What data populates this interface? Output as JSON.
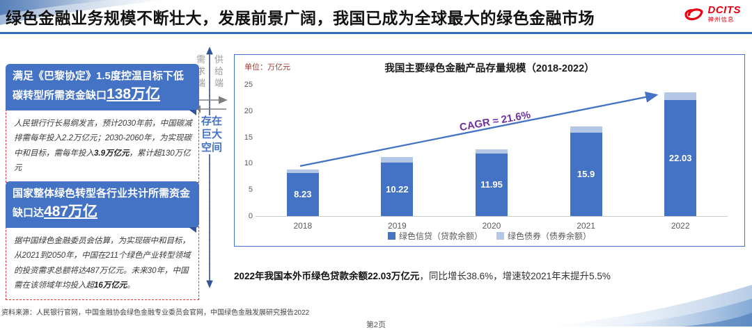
{
  "slide": {
    "title": "绿色金融业务规模不断壮大，发展前景广阔，我国已成为全球最大的绿色金融市场",
    "source": "资料来源：人民银行官网，中国金融协会绿色金融专业委员会官网，中国绿色金融发展研究报告2022",
    "page_label": "第2页"
  },
  "logo": {
    "name": "DCITS",
    "subtitle": "神州信息",
    "color": "#e60012"
  },
  "left_panel": {
    "box1": {
      "header_segments": [
        {
          "t": "满足《巴黎协定》1.5度控温目标下低碳转型所需资金缺口"
        },
        {
          "t": "138万亿",
          "cls": "hl"
        }
      ],
      "body_segments": [
        {
          "t": "人民银行行长易纲发言，预计2030年前，中国碳减排需每年投入2.2万亿元；2030-2060年，为实现碳中和目标，需每年投入"
        },
        {
          "t": "3.9万亿元",
          "cls": "b"
        },
        {
          "t": "，累计超130万亿元"
        }
      ]
    },
    "box2": {
      "header_segments": [
        {
          "t": "国家整体绿色转型各行业共计所需资金缺口达"
        },
        {
          "t": "487万亿",
          "cls": "hl"
        }
      ],
      "body_segments": [
        {
          "t": "据中国绿色金融委员会估算，为实现碳中和目标，从2021到2050年，中国在211个绿色产业转型领域的投资需求总额将达487万亿元。未来30年，中国需在该领域年均投入超"
        },
        {
          "t": "16万亿元",
          "cls": "b"
        },
        {
          "t": "。"
        }
      ]
    }
  },
  "divider": {
    "demand_label": "需求端",
    "supply_label": "供给端",
    "gap_label": "存在巨大空间"
  },
  "chart": {
    "unit_label": "单位：万亿元"
  },
  "chart_data": {
    "type": "bar",
    "stacked": true,
    "title": "我国主要绿色金融产品存量规模（2018-2022）",
    "unit": "万亿元",
    "categories": [
      "2018",
      "2019",
      "2020",
      "2021",
      "2022"
    ],
    "series": [
      {
        "name": "绿色信贷（贷款余额）",
        "color": "#4472c4",
        "values": [
          8.23,
          10.22,
          11.95,
          15.9,
          22.03
        ],
        "labeled": true
      },
      {
        "name": "绿色债券（债券余额）",
        "color": "#b4c7e7",
        "values": [
          0.7,
          1.0,
          0.8,
          1.1,
          1.5
        ],
        "labeled": false
      }
    ],
    "ylim": [
      0,
      25
    ],
    "yticks": [
      0,
      5,
      10,
      15,
      20,
      25
    ],
    "grid": false,
    "legend_position": "bottom",
    "annotation": "CAGR ≈ 21.6%"
  },
  "annotation": {
    "segments": [
      {
        "t": "2022年我国本外币绿色贷款余额22.03万亿元",
        "cls": "b"
      },
      {
        "t": "，同比增长38.6%，增速较2021年末提升5.5%"
      }
    ]
  },
  "colors": {
    "bar_primary": "#4472c4",
    "bar_secondary": "#b4c7e7",
    "box_header_bg": "#4472c4",
    "dashed_border": "#e53935",
    "cagr_text": "#7030a0",
    "title_rule": "#2c6fbb",
    "logo_red": "#e60012",
    "divider_line": "#2f5597"
  }
}
